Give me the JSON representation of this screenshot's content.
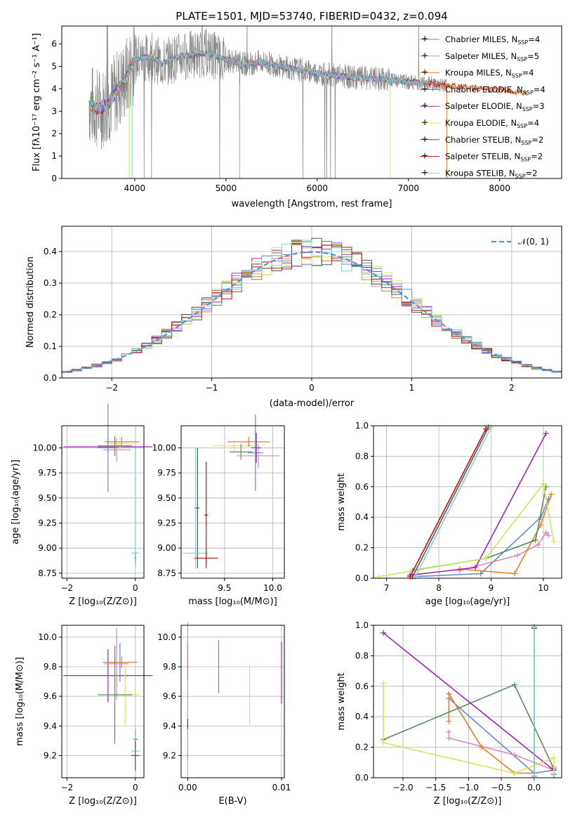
{
  "colors": {
    "chabrier_miles": "#6688cc",
    "salpeter_miles": "#e088b8",
    "kroupa_miles": "#e67e22",
    "chabrier_elodie": "#5e8a60",
    "salpeter_elodie": "#9b27b0",
    "kroupa_elodie": "#cde85a",
    "chabrier_stelib": "#555555",
    "salpeter_stelib": "#bb1111",
    "kroupa_stelib": "#7ed3d3",
    "spectrum": "#888888",
    "normal_curve": "#5a8fd6"
  },
  "chart_data": [
    {
      "id": "spectrum",
      "type": "line",
      "title": "PLATE=1501, MJD=53740, FIBERID=0432, z=0.094",
      "xlabel": "wavelength [Angstrom, rest frame]",
      "ylabel": "Flux [fλ10⁻¹⁷ erg cm⁻² s⁻¹ A⁻¹]",
      "xlim": [
        3200,
        8680
      ],
      "ylim": [
        0,
        6.8
      ],
      "xticks": [
        "4000",
        "5000",
        "6000",
        "7000",
        "8000"
      ],
      "yticks": [
        "0",
        "1",
        "2",
        "3",
        "4",
        "5",
        "6"
      ],
      "legend_position": "top-right",
      "legend": [
        {
          "key": "chabrier_miles",
          "label": "Chabrier MILES, N",
          "sub": "SSP",
          "eq": "=4"
        },
        {
          "key": "salpeter_miles",
          "label": "Salpeter MILES, N",
          "sub": "SSP",
          "eq": "=5"
        },
        {
          "key": "kroupa_miles",
          "label": "Kroupa MILES, N",
          "sub": "SSP",
          "eq": "=4"
        },
        {
          "key": "chabrier_elodie",
          "label": "Chabrier ELODIE, N",
          "sub": "SSP",
          "eq": "=4"
        },
        {
          "key": "salpeter_elodie",
          "label": "Salpeter ELODIE, N",
          "sub": "SSP",
          "eq": "=3"
        },
        {
          "key": "kroupa_elodie",
          "label": "Kroupa ELODIE, N",
          "sub": "SSP",
          "eq": "=4"
        },
        {
          "key": "chabrier_stelib",
          "label": "Chabrier STELIB, N",
          "sub": "SSP",
          "eq": "=2"
        },
        {
          "key": "salpeter_stelib",
          "label": "Salpeter STELIB, N",
          "sub": "SSP",
          "eq": "=2"
        },
        {
          "key": "kroupa_stelib",
          "label": "Kroupa STELIB, N",
          "sub": "SSP",
          "eq": "=2"
        }
      ],
      "model_continuum": {
        "wavelength": [
          3500,
          3600,
          3700,
          3800,
          3900,
          4000,
          4100,
          4200,
          4300,
          4400,
          4500,
          4600,
          4800,
          5000,
          5200,
          5400,
          5600,
          5800,
          6000,
          6200,
          6400,
          6600,
          6800,
          7000,
          7200,
          7400,
          7600,
          7800,
          8000,
          8200,
          8300
        ],
        "flux": [
          3.3,
          3.1,
          3.3,
          3.9,
          4.4,
          5.3,
          5.4,
          5.4,
          5.1,
          5.3,
          5.45,
          5.5,
          5.6,
          5.3,
          5.1,
          5.2,
          5.0,
          4.85,
          4.7,
          4.6,
          4.5,
          4.45,
          4.4,
          4.3,
          4.25,
          4.15,
          4.1,
          4.0,
          3.95,
          3.85,
          3.8
        ]
      }
    },
    {
      "id": "residuals",
      "type": "line",
      "xlabel": "(data-model)/error",
      "ylabel": "Normed distribution",
      "xlim": [
        -2.5,
        2.5
      ],
      "ylim": [
        0,
        0.48
      ],
      "xticks": [
        "−2",
        "−1",
        "0",
        "1",
        "2"
      ],
      "yticks": [
        "0.0",
        "0.1",
        "0.2",
        "0.3",
        "0.4"
      ],
      "grid": true,
      "legend_position": "top-right",
      "normal_label": "𝒩(0, 1)",
      "bin_width": 0.1,
      "normal_pdf": {
        "mean": 0,
        "sigma": 1
      }
    },
    {
      "id": "age-vs-Z",
      "type": "scatter",
      "xlabel": "Z [log₁₀(Z/Z⊙)]",
      "ylabel": "age [log₁₀(age/yr)]",
      "xlim": [
        -2.15,
        0.25
      ],
      "ylim": [
        8.7,
        10.22
      ],
      "xticks": [
        {
          "v": -2,
          "t": "−2"
        },
        {
          "v": 0,
          "t": "0"
        }
      ],
      "yticks": [
        {
          "v": 8.75,
          "t": "8.75"
        },
        {
          "v": 9.0,
          "t": "9.00"
        },
        {
          "v": 9.25,
          "t": "9.25"
        },
        {
          "v": 9.5,
          "t": "9.50"
        },
        {
          "v": 9.75,
          "t": "9.75"
        },
        {
          "v": 10.0,
          "t": "10.00"
        }
      ],
      "grid": true,
      "errorbars": [
        {
          "s": "salpeter_elodie",
          "x": -0.8,
          "xerr": 1.3,
          "y": 10.01,
          "yerr": 0.06
        },
        {
          "s": "kroupa_miles",
          "x": -0.4,
          "xerr": 0.5,
          "y": 10.06,
          "yerr": 0.05
        },
        {
          "s": "chabrier_miles",
          "x": -0.8,
          "xerr": 0.3,
          "y": 10.0,
          "yerr": 0.44
        },
        {
          "s": "salpeter_miles",
          "x": -0.55,
          "xerr": 0.4,
          "y": 9.98,
          "yerr": 0.12
        },
        {
          "s": "kroupa_elodie",
          "x": -0.45,
          "xerr": 0.4,
          "y": 10.04,
          "yerr": 0.06
        },
        {
          "s": "chabrier_elodie",
          "x": -0.6,
          "xerr": 0.5,
          "y": 10.02,
          "yerr": 0.1
        },
        {
          "s": "chabrier_stelib",
          "x": 0.0,
          "xerr": 0.02,
          "y": 8.9,
          "yerr": 0.05
        },
        {
          "s": "kroupa_stelib",
          "x": 0.0,
          "xerr": 0.1,
          "y": 8.95,
          "yerr": 0.05
        },
        {
          "s": "salpeter_stelib",
          "x": 0.0,
          "xerr": 0.02,
          "y": 8.9,
          "yerr": 0.05
        },
        {
          "s": "kroupa_stelib",
          "x": 0.0,
          "xerr": 0.02,
          "y": 9.4,
          "yerr": 0.6
        }
      ]
    },
    {
      "id": "age-vs-mass",
      "type": "scatter",
      "xlabel": "mass [log₁₀(M/M⊙)]",
      "ylabel": "",
      "xlim": [
        9.05,
        10.12
      ],
      "ylim": [
        8.7,
        10.22
      ],
      "xticks": [
        {
          "v": 9.5,
          "t": "9.5"
        },
        {
          "v": 10.0,
          "t": "10.0"
        }
      ],
      "yticks": [
        {
          "v": 8.75,
          "t": "8.75"
        },
        {
          "v": 9.0,
          "t": "9.00"
        },
        {
          "v": 9.25,
          "t": "9.25"
        },
        {
          "v": 9.5,
          "t": "9.50"
        },
        {
          "v": 9.75,
          "t": "9.75"
        },
        {
          "v": 10.0,
          "t": "10.00"
        }
      ],
      "grid": true,
      "errorbars": [
        {
          "s": "kroupa_elodie",
          "x": 9.6,
          "xerr": 0.22,
          "y": 10.02,
          "yerr": 0.05
        },
        {
          "s": "kroupa_miles",
          "x": 9.75,
          "xerr": 0.22,
          "y": 10.06,
          "yerr": 0.05
        },
        {
          "s": "salpeter_miles",
          "x": 9.85,
          "xerr": 0.22,
          "y": 9.92,
          "yerr": 0.12
        },
        {
          "s": "chabrier_miles",
          "x": 9.82,
          "xerr": 0.08,
          "y": 9.95,
          "yerr": 0.38
        },
        {
          "s": "salpeter_elodie",
          "x": 9.83,
          "xerr": 0.05,
          "y": 10.0,
          "yerr": 0.15
        },
        {
          "s": "chabrier_elodie",
          "x": 9.67,
          "xerr": 0.12,
          "y": 9.96,
          "yerr": 0.08
        },
        {
          "s": "kroupa_stelib",
          "x": 9.2,
          "xerr": 0.02,
          "y": 9.4,
          "yerr": 0.6
        },
        {
          "s": "chabrier_stelib",
          "x": 9.22,
          "xerr": 0.02,
          "y": 9.4,
          "yerr": 0.6
        },
        {
          "s": "kroupa_stelib",
          "x": 9.2,
          "xerr": 0.13,
          "y": 8.95,
          "yerr": 0.05
        },
        {
          "s": "salpeter_stelib",
          "x": 9.31,
          "xerr": 0.12,
          "y": 8.9,
          "yerr": 0.05
        },
        {
          "s": "salpeter_stelib",
          "x": 9.31,
          "xerr": 0.02,
          "y": 9.33,
          "yerr": 0.53
        }
      ]
    },
    {
      "id": "weight-vs-age",
      "type": "line",
      "xlabel": "age [log₁₀(age/yr)]",
      "ylabel": "mass weight",
      "xlim": [
        6.75,
        10.35
      ],
      "ylim": [
        0,
        1.0
      ],
      "xticks": [
        {
          "v": 7,
          "t": "7"
        },
        {
          "v": 8,
          "t": "8"
        },
        {
          "v": 9,
          "t": "9"
        },
        {
          "v": 10,
          "t": "10"
        }
      ],
      "yticks": [
        {
          "v": 0,
          "t": "0.0"
        },
        {
          "v": 0.2,
          "t": "0.2"
        },
        {
          "v": 0.4,
          "t": "0.4"
        },
        {
          "v": 0.6,
          "t": "0.6"
        },
        {
          "v": 0.8,
          "t": "0.8"
        },
        {
          "v": 1.0,
          "t": "1.0"
        }
      ],
      "grid": true,
      "series": [
        {
          "s": "chabrier_miles",
          "x": [
            7.5,
            8.8,
            9.95,
            10.1
          ],
          "y": [
            0.01,
            0.03,
            0.4,
            0.52
          ]
        },
        {
          "s": "salpeter_miles",
          "x": [
            8.4,
            9.5,
            9.9,
            10.05,
            10.1
          ],
          "y": [
            0.05,
            0.15,
            0.22,
            0.3,
            0.28
          ]
        },
        {
          "s": "kroupa_miles",
          "x": [
            8.4,
            9.45,
            9.95,
            10.15
          ],
          "y": [
            0.06,
            0.03,
            0.35,
            0.55
          ]
        },
        {
          "s": "chabrier_elodie",
          "x": [
            7.5,
            8.9,
            9.85,
            10.05
          ],
          "y": [
            0.05,
            0.13,
            0.25,
            0.6
          ]
        },
        {
          "s": "salpeter_elodie",
          "x": [
            7.45,
            8.7,
            10.05
          ],
          "y": [
            0.02,
            0.07,
            0.95
          ]
        },
        {
          "s": "kroupa_elodie",
          "x": [
            6.85,
            8.9,
            10.0,
            10.2
          ],
          "y": [
            0.01,
            0.13,
            0.62,
            0.24
          ]
        },
        {
          "s": "chabrier_stelib",
          "x": [
            7.5,
            8.95
          ],
          "y": [
            0.01,
            0.99
          ]
        },
        {
          "s": "salpeter_stelib",
          "x": [
            7.45,
            8.9
          ],
          "y": [
            0.01,
            0.98
          ]
        },
        {
          "s": "kroupa_stelib",
          "x": [
            7.55,
            9.0
          ],
          "y": [
            0.01,
            0.99
          ]
        }
      ]
    },
    {
      "id": "mass-vs-Z",
      "type": "scatter",
      "xlabel": "Z [log₁₀(Z/Z⊙)]",
      "ylabel": "mass [log₁₀(M/M⊙)]",
      "xlim": [
        -2.15,
        0.25
      ],
      "ylim": [
        9.05,
        10.08
      ],
      "xticks": [
        {
          "v": -2,
          "t": "−2"
        },
        {
          "v": 0,
          "t": "0"
        }
      ],
      "yticks": [
        {
          "v": 9.2,
          "t": "9.2"
        },
        {
          "v": 9.4,
          "t": "9.4"
        },
        {
          "v": 9.6,
          "t": "9.6"
        },
        {
          "v": 9.8,
          "t": "9.8"
        },
        {
          "v": 10.0,
          "t": "10.0"
        }
      ],
      "grid": true,
      "errorbars": [
        {
          "s": "salpeter_elodie",
          "x": -0.8,
          "xerr": 1.3,
          "y": 9.74,
          "yerr": 0.18
        },
        {
          "s": "chabrier_miles",
          "x": -0.45,
          "xerr": 0.5,
          "y": 9.83,
          "yerr": 0.13
        },
        {
          "s": "salpeter_miles",
          "x": -0.55,
          "xerr": 0.35,
          "y": 9.82,
          "yerr": 0.24
        },
        {
          "s": "kroupa_elodie",
          "x": -0.3,
          "xerr": 0.4,
          "y": 9.61,
          "yerr": 0.2
        },
        {
          "s": "chabrier_elodie",
          "x": -0.6,
          "xerr": 0.5,
          "y": 9.61,
          "yerr": 0.33
        },
        {
          "s": "kroupa_miles",
          "x": -0.4,
          "xerr": 0.45,
          "y": 9.83,
          "yerr": 0.04
        },
        {
          "s": "salpeter_stelib",
          "x": 0.0,
          "xerr": 0.05,
          "y": 9.31,
          "yerr": 0.07
        },
        {
          "s": "kroupa_stelib",
          "x": 0.0,
          "xerr": 0.12,
          "y": 9.23,
          "yerr": 0.15
        },
        {
          "s": "chabrier_stelib",
          "x": 0.0,
          "xerr": 0.12,
          "y": 9.2,
          "yerr": 0.1
        }
      ]
    },
    {
      "id": "mass-vs-EBV",
      "type": "scatter",
      "xlabel": "E(B-V)",
      "ylabel": "",
      "xlim": [
        -0.0007,
        0.0103
      ],
      "ylim": [
        9.05,
        10.08
      ],
      "xticks": [
        {
          "v": 0.0,
          "t": "0.00"
        },
        {
          "v": 0.01,
          "t": "0.01"
        }
      ],
      "yticks": [
        {
          "v": 9.2,
          "t": "9.2"
        },
        {
          "v": 9.4,
          "t": "9.4"
        },
        {
          "v": 9.6,
          "t": "9.6"
        },
        {
          "v": 9.8,
          "t": "9.8"
        },
        {
          "v": 10.0,
          "t": "10.0"
        }
      ],
      "grid": true,
      "errorbars": [
        {
          "s": "salpeter_miles",
          "x": 0.0,
          "xerr": 0.0,
          "y": 9.78,
          "yerr": 0.32
        },
        {
          "s": "kroupa_miles",
          "x": 0.0,
          "xerr": 0.0,
          "y": 9.83,
          "yerr": 0.12
        },
        {
          "s": "salpeter_stelib",
          "x": 0.0,
          "xerr": 0.0,
          "y": 9.31,
          "yerr": 0.14
        },
        {
          "s": "kroupa_stelib",
          "x": 0.0,
          "xerr": 0.0,
          "y": 9.23,
          "yerr": 0.15
        },
        {
          "s": "chabrier_miles",
          "x": 0.0033,
          "xerr": 0.0,
          "y": 9.8,
          "yerr": 0.18
        },
        {
          "s": "kroupa_elodie",
          "x": 0.0066,
          "xerr": 0.0,
          "y": 9.61,
          "yerr": 0.2
        },
        {
          "s": "salpeter_elodie",
          "x": 0.01,
          "xerr": 0.0,
          "y": 9.76,
          "yerr": 0.21
        }
      ]
    },
    {
      "id": "weight-vs-Z",
      "type": "line",
      "xlabel": "Z [log₁₀(Z/Z⊙)]",
      "ylabel": "mass weight",
      "xlim": [
        -2.45,
        0.42
      ],
      "ylim": [
        0,
        1.0
      ],
      "xticks": [
        {
          "v": -2.0,
          "t": "−2.0"
        },
        {
          "v": -1.5,
          "t": "−1.5"
        },
        {
          "v": -1.0,
          "t": "−1.0"
        },
        {
          "v": -0.5,
          "t": "−0.5"
        },
        {
          "v": 0.0,
          "t": "0.0"
        }
      ],
      "yticks": [
        {
          "v": 0,
          "t": "0.0"
        },
        {
          "v": 0.2,
          "t": "0.2"
        },
        {
          "v": 0.4,
          "t": "0.4"
        },
        {
          "v": 0.6,
          "t": "0.6"
        },
        {
          "v": 0.8,
          "t": "0.8"
        },
        {
          "v": 1.0,
          "t": "1.0"
        }
      ],
      "grid": true,
      "series": [
        {
          "s": "chabrier_miles",
          "x": [
            -1.3,
            0.0,
            0.3,
            0.3
          ],
          "y": [
            0.52,
            0.03,
            0.05,
            0.02
          ]
        },
        {
          "s": "salpeter_miles",
          "x": [
            -1.3,
            -1.3,
            -0.3,
            0.3,
            0.3
          ],
          "y": [
            0.3,
            0.26,
            0.15,
            0.05,
            0.07
          ]
        },
        {
          "s": "kroupa_miles",
          "x": [
            -1.3,
            -1.3,
            -0.8,
            -0.3,
            0.0
          ],
          "y": [
            0.37,
            0.55,
            0.2,
            0.03,
            0.03
          ]
        },
        {
          "s": "chabrier_elodie",
          "x": [
            -2.3,
            -0.3,
            0.3
          ],
          "y": [
            0.25,
            0.61,
            0.06
          ]
        },
        {
          "s": "salpeter_elodie",
          "x": [
            -2.3,
            0.3,
            0.3
          ],
          "y": [
            0.95,
            0.05,
            0.03
          ]
        },
        {
          "s": "kroupa_elodie",
          "x": [
            -2.3,
            -2.3,
            -0.3,
            0.3,
            0.3
          ],
          "y": [
            0.62,
            0.23,
            0.03,
            0.13,
            0.03
          ]
        },
        {
          "s": "chabrier_stelib",
          "x": [
            0.0,
            0.0
          ],
          "y": [
            0.01,
            0.99
          ]
        },
        {
          "s": "salpeter_stelib",
          "x": [
            0.0,
            0.0
          ],
          "y": [
            0.01,
            0.98
          ]
        },
        {
          "s": "kroupa_stelib",
          "x": [
            0.0,
            0.0
          ],
          "y": [
            0.01,
            0.99
          ]
        }
      ]
    }
  ]
}
